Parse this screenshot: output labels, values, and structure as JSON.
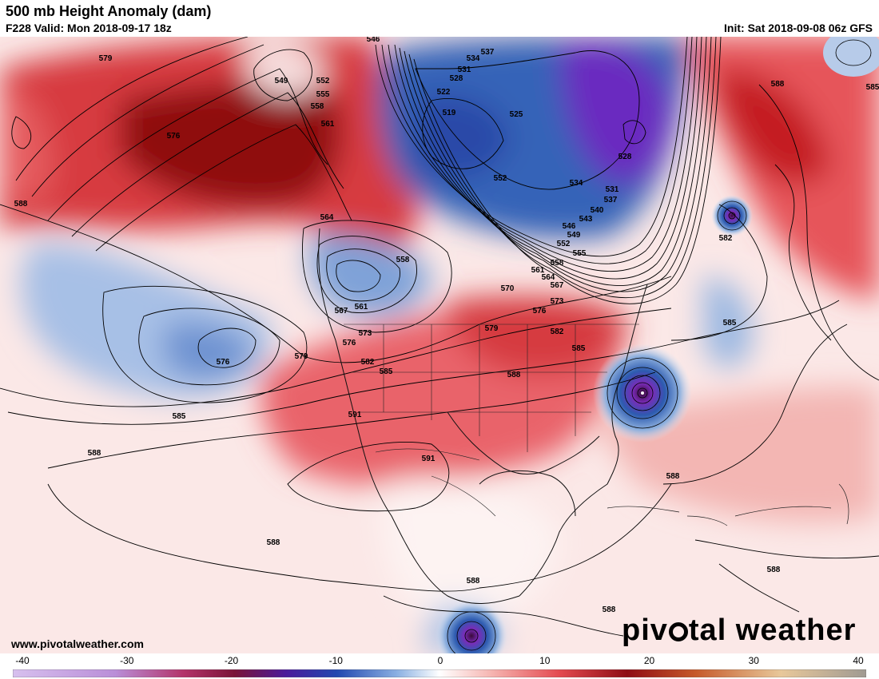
{
  "header": {
    "title": "500 mb Height Anomaly (dam)",
    "valid": "F228 Valid: Mon 2018-09-17 18z",
    "init": "Init: Sat 2018-09-08 06z GFS"
  },
  "footer": {
    "site_url": "www.pivotalweather.com",
    "logo_pre": "piv",
    "logo_post": "tal weather"
  },
  "colorbar": {
    "ticks": [
      "-40",
      "-30",
      "-20",
      "-10",
      "0",
      "10",
      "20",
      "30",
      "40"
    ]
  },
  "contour_labels": [
    "579",
    "549",
    "552",
    "555",
    "558",
    "561",
    "546",
    "534",
    "537",
    "531",
    "528",
    "522",
    "519",
    "525",
    "528",
    "552",
    "576",
    "588",
    "564",
    "558",
    "561",
    "567",
    "573",
    "576",
    "582",
    "585",
    "591",
    "591",
    "579",
    "576",
    "585",
    "588",
    "588",
    "588",
    "534",
    "531",
    "537",
    "540",
    "543",
    "546",
    "549",
    "552",
    "555",
    "558",
    "561",
    "564",
    "567",
    "570",
    "573",
    "576",
    "579",
    "582",
    "585",
    "588",
    "582",
    "585",
    "588",
    "588",
    "588",
    "588",
    "585"
  ],
  "colors": {
    "positive_max": "#7f0000",
    "positive_mid": "#e0454a",
    "positive_low": "#f7c9c6",
    "negative_low": "#c9d8ee",
    "negative_mid": "#3c6fc0",
    "negative_max": "#7a2bb8"
  }
}
